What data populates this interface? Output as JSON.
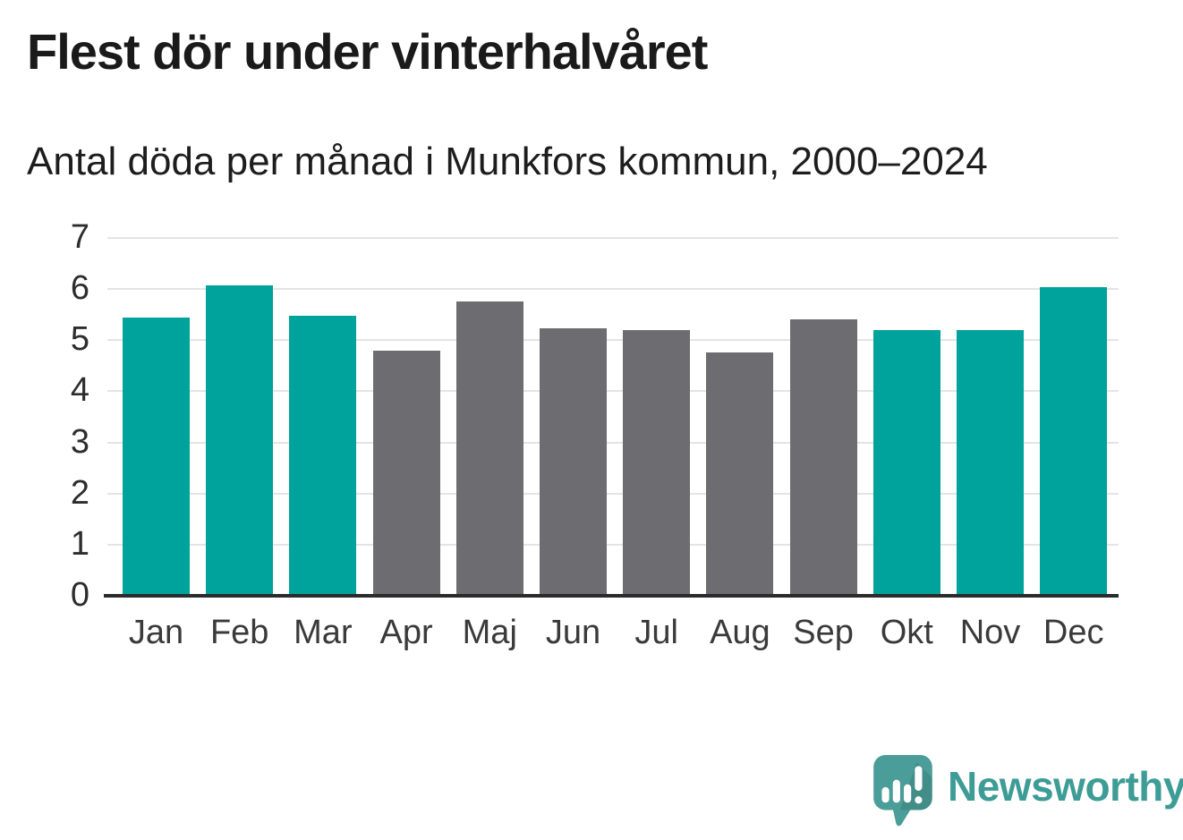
{
  "header": {
    "title": "Flest dör under vinterhalvåret",
    "subtitle": "Antal döda per månad i Munkfors kommun, 2000–2024"
  },
  "chart_data": {
    "type": "bar",
    "title": "Flest dör under vinterhalvåret",
    "subtitle": "Antal döda per månad i Munkfors kommun, 2000–2024",
    "categories": [
      "Jan",
      "Feb",
      "Mar",
      "Apr",
      "Maj",
      "Jun",
      "Jul",
      "Aug",
      "Sep",
      "Okt",
      "Nov",
      "Dec"
    ],
    "values": [
      5.44,
      6.08,
      5.48,
      4.8,
      5.76,
      5.24,
      5.2,
      4.76,
      5.4,
      5.2,
      5.2,
      6.04
    ],
    "bar_colors": [
      "teal",
      "teal",
      "teal",
      "gray",
      "gray",
      "gray",
      "gray",
      "gray",
      "gray",
      "teal",
      "teal",
      "teal"
    ],
    "palette": {
      "teal": "#00a39b",
      "gray": "#6c6c71"
    },
    "xlabel": "",
    "ylabel": "",
    "ylim": [
      0,
      7
    ],
    "yticks": [
      0,
      1,
      2,
      3,
      4,
      5,
      6,
      7
    ],
    "grid": "horizontal-light",
    "legend": "none"
  },
  "style_colors": {
    "background": "#ffffff",
    "grid": "#e4e4e4",
    "axis": "#2b2b2b",
    "tick_label": "#2d2d2d",
    "month_label": "#3a3a3a"
  },
  "footer": {
    "brand": "Newsworthy",
    "brand_color": "#3d9c96",
    "logo_icon": "newsworthy-speech-bubble-bar-chart-icon",
    "logo_bubble_color": "#4a9d98",
    "logo_glyph_color": "#ffffff"
  }
}
